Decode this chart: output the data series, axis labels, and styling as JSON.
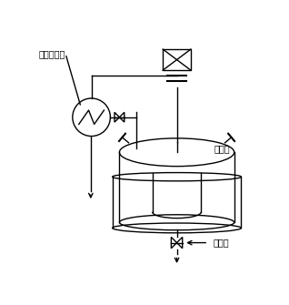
{
  "bg_color": "#ffffff",
  "line_color": "#000000",
  "label_reflux": "回流冷却器",
  "label_feed": "加料口",
  "label_outlet": "出料口",
  "fig_width": 3.18,
  "fig_height": 3.35,
  "dpi": 100
}
